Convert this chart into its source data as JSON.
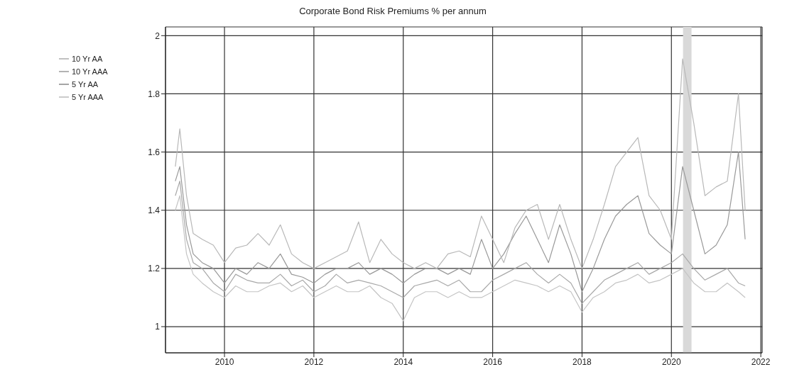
{
  "chart_data": {
    "type": "line",
    "title": "Corporate Bond Risk Premiums % per annum",
    "x": [
      2008.9,
      2009.0,
      2009.15,
      2009.3,
      2009.5,
      2009.75,
      2010,
      2010.25,
      2010.5,
      2010.75,
      2011,
      2011.25,
      2011.5,
      2011.75,
      2012,
      2012.25,
      2012.5,
      2012.75,
      2013,
      2013.25,
      2013.5,
      2013.75,
      2014,
      2014.25,
      2014.5,
      2014.75,
      2015,
      2015.25,
      2015.5,
      2015.75,
      2016,
      2016.25,
      2016.5,
      2016.75,
      2017,
      2017.25,
      2017.5,
      2017.75,
      2018,
      2018.25,
      2018.5,
      2018.75,
      2019,
      2019.25,
      2019.5,
      2019.75,
      2020,
      2020.25,
      2020.5,
      2020.75,
      2021,
      2021.25,
      2021.5,
      2021.65
    ],
    "series": [
      {
        "name": "5 Yr AAA",
        "color": "#c4c4c4",
        "values": [
          1.4,
          1.45,
          1.25,
          1.18,
          1.15,
          1.12,
          1.1,
          1.14,
          1.12,
          1.12,
          1.14,
          1.15,
          1.12,
          1.14,
          1.1,
          1.12,
          1.14,
          1.12,
          1.12,
          1.14,
          1.1,
          1.08,
          1.02,
          1.1,
          1.12,
          1.12,
          1.1,
          1.12,
          1.1,
          1.1,
          1.12,
          1.14,
          1.16,
          1.15,
          1.14,
          1.12,
          1.14,
          1.12,
          1.05,
          1.1,
          1.12,
          1.15,
          1.16,
          1.18,
          1.15,
          1.16,
          1.18,
          1.2,
          1.15,
          1.12,
          1.12,
          1.15,
          1.12,
          1.1
        ]
      },
      {
        "name": "10 Yr AAA",
        "color": "#a8a8a8",
        "values": [
          1.45,
          1.5,
          1.3,
          1.22,
          1.2,
          1.15,
          1.12,
          1.18,
          1.16,
          1.15,
          1.15,
          1.18,
          1.14,
          1.16,
          1.12,
          1.14,
          1.18,
          1.15,
          1.16,
          1.15,
          1.14,
          1.12,
          1.1,
          1.14,
          1.15,
          1.16,
          1.14,
          1.16,
          1.12,
          1.12,
          1.16,
          1.18,
          1.2,
          1.22,
          1.18,
          1.15,
          1.18,
          1.15,
          1.08,
          1.12,
          1.16,
          1.18,
          1.2,
          1.22,
          1.18,
          1.2,
          1.22,
          1.25,
          1.2,
          1.16,
          1.18,
          1.2,
          1.15,
          1.14
        ]
      },
      {
        "name": "5 Yr AA",
        "color": "#999999",
        "values": [
          1.5,
          1.55,
          1.35,
          1.25,
          1.22,
          1.2,
          1.15,
          1.2,
          1.18,
          1.22,
          1.2,
          1.25,
          1.18,
          1.17,
          1.15,
          1.18,
          1.2,
          1.2,
          1.22,
          1.18,
          1.2,
          1.18,
          1.15,
          1.18,
          1.2,
          1.2,
          1.18,
          1.2,
          1.18,
          1.3,
          1.2,
          1.25,
          1.32,
          1.38,
          1.3,
          1.22,
          1.35,
          1.25,
          1.12,
          1.2,
          1.3,
          1.38,
          1.42,
          1.45,
          1.32,
          1.28,
          1.25,
          1.55,
          1.4,
          1.25,
          1.28,
          1.35,
          1.6,
          1.3
        ]
      },
      {
        "name": "10 Yr AA",
        "color": "#b8b8b8",
        "values": [
          1.55,
          1.68,
          1.45,
          1.32,
          1.3,
          1.28,
          1.22,
          1.27,
          1.28,
          1.32,
          1.28,
          1.35,
          1.25,
          1.22,
          1.2,
          1.22,
          1.24,
          1.26,
          1.36,
          1.22,
          1.3,
          1.25,
          1.22,
          1.2,
          1.22,
          1.2,
          1.25,
          1.26,
          1.24,
          1.38,
          1.3,
          1.22,
          1.34,
          1.4,
          1.42,
          1.3,
          1.42,
          1.3,
          1.2,
          1.3,
          1.42,
          1.55,
          1.6,
          1.65,
          1.45,
          1.4,
          1.3,
          1.92,
          1.7,
          1.45,
          1.48,
          1.5,
          1.8,
          1.4
        ]
      }
    ],
    "xlim": [
      2008.68,
      2022.03
    ],
    "xticks": [
      2010,
      2012,
      2014,
      2016,
      2018,
      2020,
      2022
    ],
    "ylim": [
      0.91,
      2.03
    ],
    "yticks": [
      1,
      1.2,
      1.4,
      1.6,
      1.8,
      2
    ],
    "bands": [
      {
        "axis": "x",
        "from": 2020.26,
        "to": 2020.45,
        "color": "#d9d9d9"
      }
    ],
    "grid": true,
    "legend": "top left",
    "marker": "none",
    "line_style": "solid"
  }
}
